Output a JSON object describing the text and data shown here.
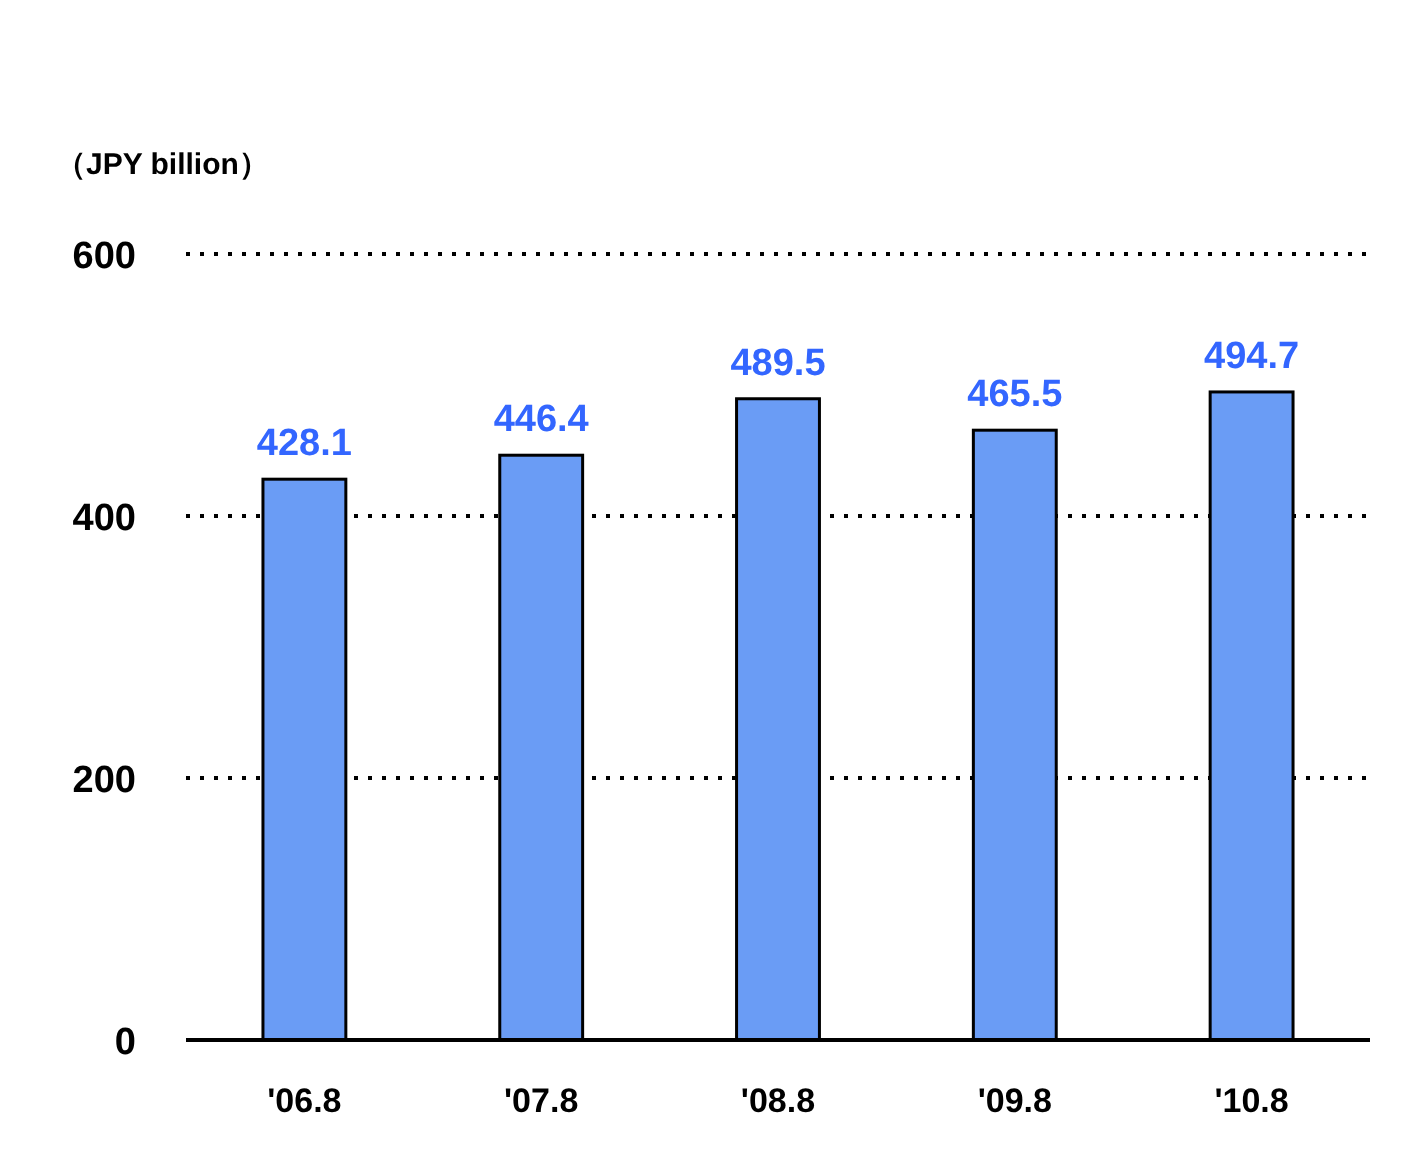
{
  "chart_data": {
    "type": "bar",
    "ylabel": "（JPY billion）",
    "categories": [
      "'06.8",
      "'07.8",
      "'08.8",
      "'09.8",
      "'10.8"
    ],
    "values": [
      428.1,
      446.4,
      489.5,
      465.5,
      494.7
    ],
    "color": "#6a9cf5",
    "ylim": [
      0,
      600
    ],
    "yticks": [
      0,
      200,
      400,
      600
    ],
    "grid": "y",
    "data_labels": true
  }
}
